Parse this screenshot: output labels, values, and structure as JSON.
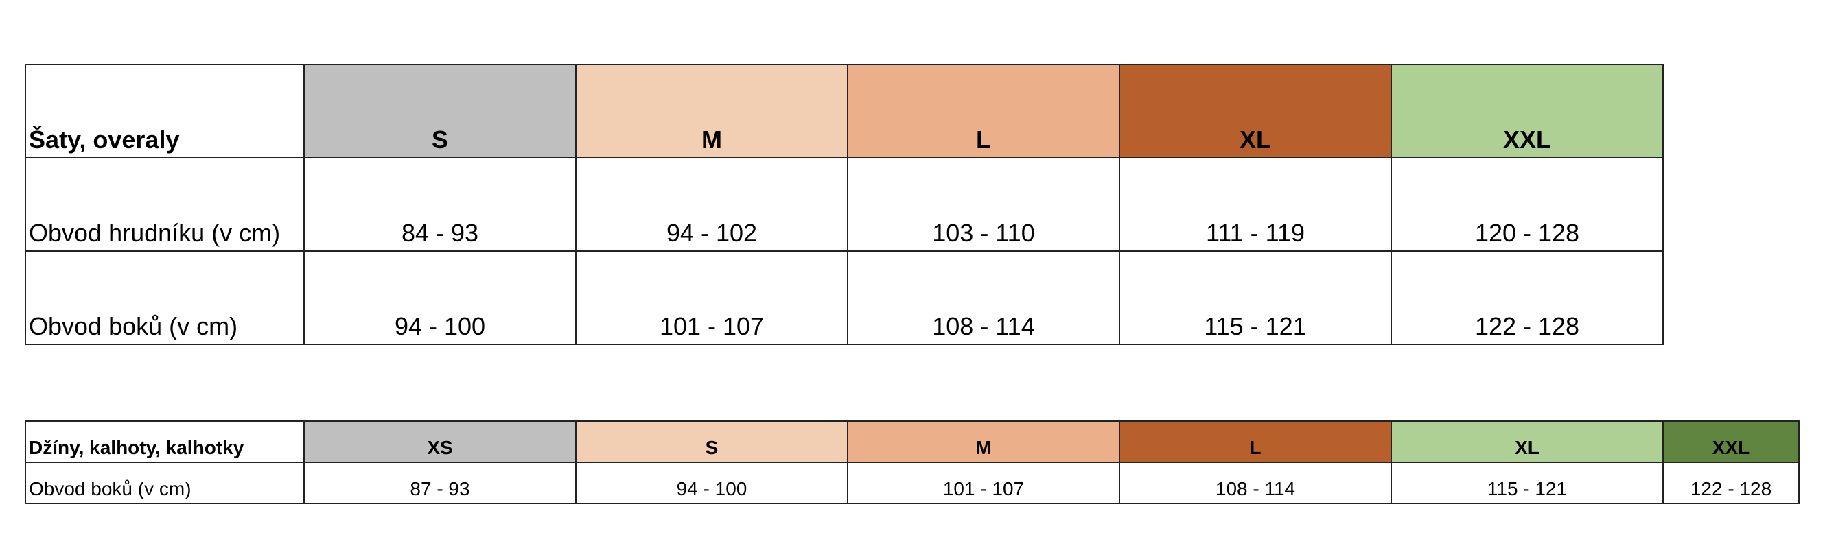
{
  "tables": [
    {
      "headers": [
        "Šaty, overaly",
        "S",
        "M",
        "L",
        "XL",
        "XXL"
      ],
      "header_colors": [
        "#ffffff",
        "#bfbfbf",
        "#f2cfb3",
        "#ebb08a",
        "#b8602b",
        "#aed095"
      ],
      "rows": [
        [
          "Obvod hrudníku (v cm)",
          "84 - 93",
          "94 - 102",
          "103 - 110",
          "111 - 119",
          "120 - 128"
        ],
        [
          "Obvod boků (v cm)",
          "94 - 100",
          "101 - 107",
          "108 - 114",
          "115 - 121",
          "122 - 128"
        ]
      ]
    },
    {
      "headers": [
        "Džíny, kalhoty, kalhotky",
        "XS",
        "S",
        "M",
        "L",
        "XL",
        "XXL"
      ],
      "header_colors": [
        "#ffffff",
        "#bfbfbf",
        "#f2cfb3",
        "#ebb08a",
        "#b8602b",
        "#aed095",
        "#5f8540"
      ],
      "rows": [
        [
          "Obvod boků (v cm)",
          "87 - 93",
          "94 - 100",
          "101 - 107",
          "108 - 114",
          "115 - 121",
          "122 - 128"
        ]
      ]
    }
  ]
}
